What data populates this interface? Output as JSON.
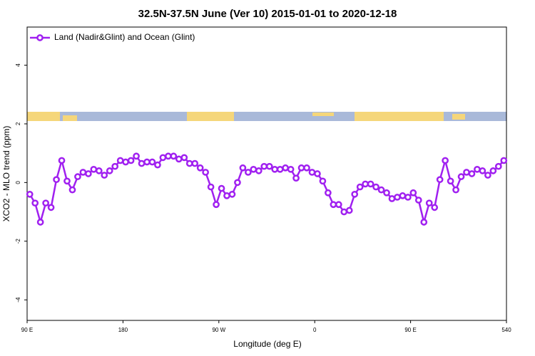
{
  "chart_data": {
    "type": "line",
    "title": "32.5N-37.5N June (Ver 10)   2015-01-01 to 2020-12-18",
    "x_label": "Longitude (deg E)",
    "y_label": "XCO2 - MLO trend (ppm)",
    "legend_position": "top-left",
    "x": [
      92.5,
      97.5,
      102.5,
      107.5,
      112.5,
      117.5,
      122.5,
      127.5,
      132.5,
      137.5,
      142.5,
      147.5,
      152.5,
      157.5,
      162.5,
      167.5,
      172.5,
      177.5,
      182.5,
      187.5,
      192.5,
      197.5,
      202.5,
      207.5,
      212.5,
      217.5,
      222.5,
      227.5,
      232.5,
      237.5,
      242.5,
      247.5,
      252.5,
      257.5,
      262.5,
      267.5,
      272.5,
      277.5,
      282.5,
      287.5,
      292.5,
      297.5,
      302.5,
      307.5,
      312.5,
      317.5,
      322.5,
      327.5,
      332.5,
      337.5,
      342.5,
      347.5,
      352.5,
      357.5,
      362.5,
      367.5,
      372.5,
      377.5,
      382.5,
      387.5,
      392.5,
      397.5,
      402.5,
      407.5,
      412.5,
      417.5,
      422.5,
      427.5,
      432.5,
      437.5,
      442.5,
      447.5,
      452.5,
      457.5,
      462.5,
      467.5,
      472.5,
      477.5,
      482.5,
      487.5,
      492.5,
      497.5,
      502.5,
      507.5,
      512.5,
      517.5,
      522.5,
      527.5,
      532.5,
      537.5
    ],
    "series": [
      {
        "name": "Land (Nadir&Glint) and Ocean (Glint)",
        "color": "#a020f0",
        "values": [
          -0.4,
          -0.7,
          -1.35,
          -0.7,
          -0.85,
          0.1,
          0.75,
          0.05,
          -0.25,
          0.2,
          0.35,
          0.3,
          0.45,
          0.4,
          0.25,
          0.4,
          0.55,
          0.75,
          0.7,
          0.75,
          0.9,
          0.65,
          0.7,
          0.7,
          0.6,
          0.85,
          0.9,
          0.9,
          0.8,
          0.85,
          0.65,
          0.65,
          0.5,
          0.35,
          -0.15,
          -0.75,
          -0.2,
          -0.45,
          -0.4,
          0.0,
          0.5,
          0.35,
          0.45,
          0.4,
          0.55,
          0.55,
          0.45,
          0.45,
          0.5,
          0.45,
          0.15,
          0.5,
          0.5,
          0.35,
          0.3,
          0.05,
          -0.35,
          -0.75,
          -0.75,
          -1.0,
          -0.95,
          -0.4,
          -0.15,
          -0.05,
          -0.05,
          -0.15,
          -0.25,
          -0.35,
          -0.55,
          -0.5,
          -0.45,
          -0.5,
          -0.35,
          -0.6,
          -1.35,
          -0.7,
          -0.85,
          0.1,
          0.75,
          0.05,
          -0.25,
          0.2,
          0.35,
          0.3,
          0.45,
          0.4,
          0.25,
          0.4,
          0.55,
          0.75
        ]
      }
    ],
    "xlim": [
      90,
      540
    ],
    "xticks": [
      {
        "value": 90,
        "label": "90 E"
      },
      180,
      {
        "value": 270,
        "label": "90 W"
      },
      {
        "value": 360,
        "label": "0"
      },
      {
        "value": 450,
        "label": "90 E"
      },
      540
    ],
    "ylim": [
      -4.7,
      5.3
    ],
    "yticks": [
      -4,
      -2,
      0,
      2,
      4
    ]
  }
}
